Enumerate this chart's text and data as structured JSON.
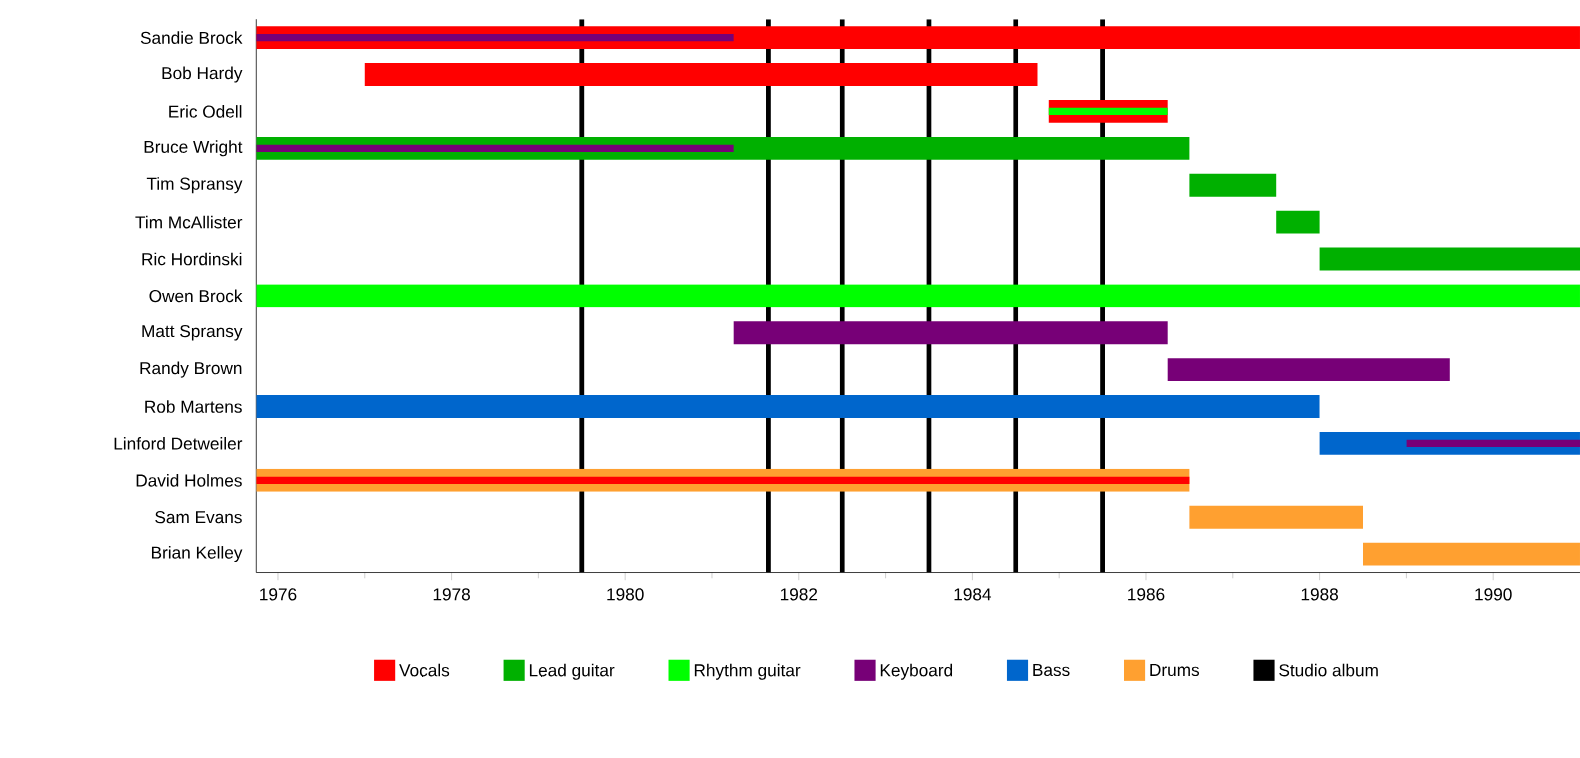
{
  "chart_data": {
    "type": "bar",
    "orientation": "horizontal",
    "legend": "bottom",
    "categories": [
      "Sandie Brock",
      "Bob Hardy",
      "Eric Odell",
      "Bruce Wright",
      "Tim Spransy",
      "Tim McAllister",
      "Ric Hordinski",
      "Owen Brock",
      "Matt Spransy",
      "Randy Brown",
      "Rob Martens",
      "Linford Detweiler",
      "David Holmes",
      "Sam Evans",
      "Brian Kelley"
    ],
    "series": [
      {
        "name": "Vocals",
        "color": "#ff0000",
        "base": [
          1975.75,
          1977,
          1984.88,
          null,
          null,
          null,
          null,
          null,
          null,
          null,
          null,
          null,
          null,
          null,
          null
        ],
        "values": [
          15.25,
          7.75,
          1.37,
          null,
          null,
          null,
          null,
          null,
          null,
          null,
          null,
          null,
          null,
          null,
          null
        ]
      },
      {
        "name": "Lead guitar",
        "color": "#00b000",
        "base": [
          null,
          null,
          null,
          1975.75,
          1986.5,
          1987.5,
          1988,
          null,
          null,
          null,
          null,
          null,
          null,
          null,
          null
        ],
        "values": [
          null,
          null,
          null,
          10.75,
          1,
          0.5,
          3,
          null,
          null,
          null,
          null,
          null,
          null,
          null,
          null
        ]
      },
      {
        "name": "Rhythm guitar",
        "color": "#00ff00",
        "base": [
          null,
          null,
          1984.88,
          null,
          null,
          null,
          null,
          1975.75,
          null,
          null,
          null,
          null,
          null,
          null,
          null
        ],
        "values": [
          null,
          null,
          1.37,
          null,
          null,
          null,
          null,
          15.25,
          null,
          null,
          null,
          null,
          null,
          null,
          null
        ]
      },
      {
        "name": "Keyboard",
        "color": "#770077",
        "base": [
          1975.75,
          null,
          null,
          1975.75,
          null,
          null,
          null,
          null,
          1981.25,
          1986.25,
          null,
          1989,
          null,
          null,
          null
        ],
        "values": [
          5.5,
          null,
          null,
          5.5,
          null,
          null,
          null,
          null,
          5,
          3.25,
          null,
          2,
          null,
          null,
          null
        ]
      },
      {
        "name": "Bass",
        "color": "#0066cc",
        "base": [
          null,
          null,
          null,
          null,
          null,
          null,
          null,
          null,
          null,
          null,
          1975.75,
          1988,
          null,
          null,
          null
        ],
        "values": [
          null,
          null,
          null,
          null,
          null,
          null,
          null,
          null,
          null,
          null,
          12.25,
          3,
          null,
          null,
          null
        ]
      },
      {
        "name": "Drums",
        "color": "#ffa030",
        "base": [
          null,
          null,
          null,
          null,
          null,
          null,
          null,
          null,
          null,
          null,
          null,
          null,
          1975.75,
          1986.5,
          1988.5
        ],
        "values": [
          null,
          null,
          null,
          null,
          null,
          null,
          null,
          null,
          null,
          null,
          null,
          null,
          10.75,
          2,
          2.5
        ]
      },
      {
        "color": "#ff0000",
        "base": [
          null,
          null,
          null,
          null,
          null,
          null,
          null,
          null,
          null,
          null,
          null,
          null,
          1975.75,
          null,
          null
        ],
        "values": [
          null,
          null,
          null,
          null,
          null,
          null,
          null,
          null,
          null,
          null,
          null,
          null,
          10.75,
          null,
          null
        ]
      }
    ],
    "ref_lines": [
      {
        "axis": "x",
        "value": 1979.5,
        "color": "#000000",
        "label": "Studio album"
      },
      {
        "axis": "x",
        "value": 1981.65,
        "color": "#000000"
      },
      {
        "axis": "x",
        "value": 1982.5,
        "color": "#000000"
      },
      {
        "axis": "x",
        "value": 1983.5,
        "color": "#000000"
      },
      {
        "axis": "x",
        "value": 1984.5,
        "color": "#000000"
      },
      {
        "axis": "x",
        "value": 1985.5,
        "color": "#000000"
      }
    ],
    "xlim": [
      1975.75,
      1991
    ],
    "xticks": [
      1976,
      {
        "value": 1977,
        "label": null
      },
      1978,
      {
        "value": 1979,
        "label": null
      },
      1980,
      {
        "value": 1981,
        "label": null
      },
      1982,
      {
        "value": 1983,
        "label": null
      },
      1984,
      {
        "value": 1985,
        "label": null
      },
      1986,
      {
        "value": 1987,
        "label": null
      },
      1988,
      {
        "value": 1989,
        "label": null
      },
      1990
    ]
  }
}
